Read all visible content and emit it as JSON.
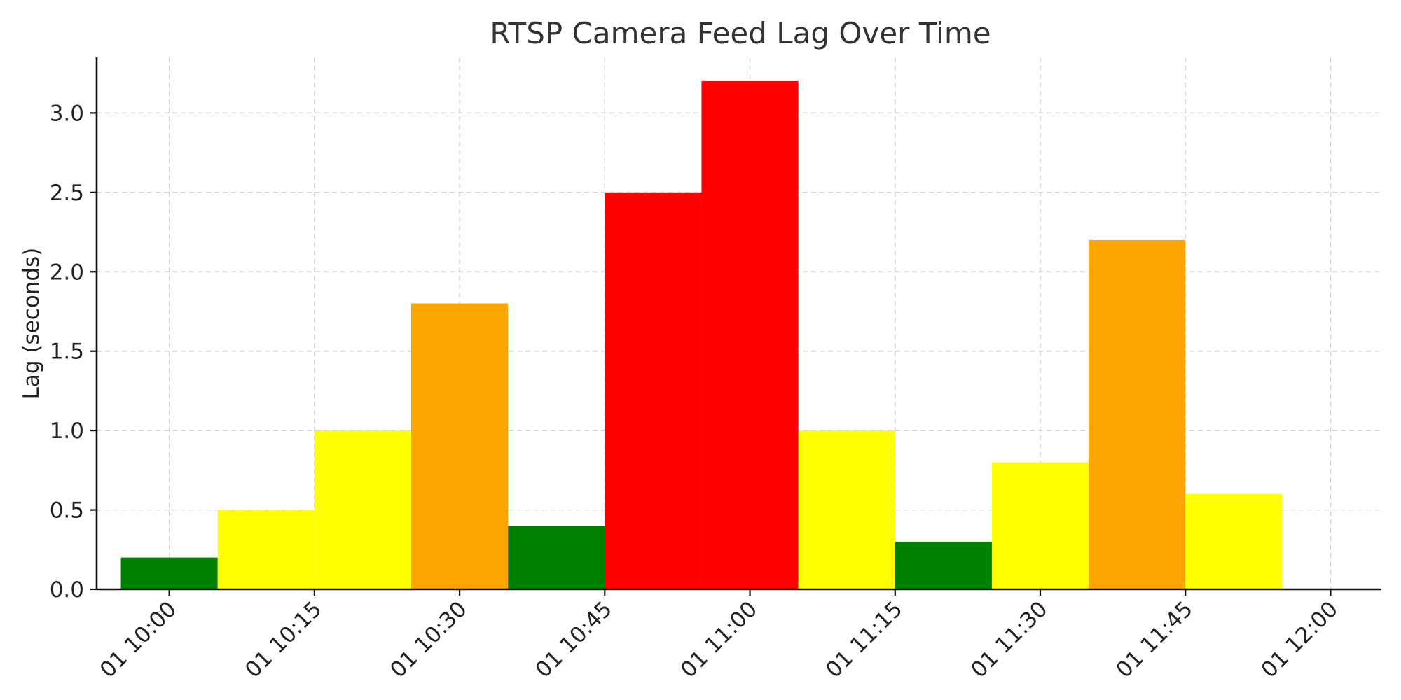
{
  "chart_data": {
    "type": "bar",
    "title": "RTSP Camera Feed Lag Over Time",
    "xlabel": "",
    "ylabel": "Lag (seconds)",
    "x_axis_type": "time",
    "x_ticks": [
      "01 10:00",
      "01 10:15",
      "01 10:30",
      "01 10:45",
      "01 11:00",
      "01 11:15",
      "01 11:30",
      "01 11:45",
      "01 12:00"
    ],
    "xlim": [
      "10:00 - 0.5*15min",
      "12:00 + 0.35*15min"
    ],
    "y_ticks": [
      "0.0",
      "0.5",
      "1.0",
      "1.5",
      "2.0",
      "2.5",
      "3.0"
    ],
    "ylim": [
      0,
      3.35
    ],
    "grid": true,
    "legend": "none",
    "bar_duration_minutes": 10,
    "bars": [
      {
        "time": "10:00",
        "value": 0.2,
        "color": "#008000"
      },
      {
        "time": "10:10",
        "value": 0.5,
        "color": "#ffff00"
      },
      {
        "time": "10:20",
        "value": 1.0,
        "color": "#ffff00"
      },
      {
        "time": "10:30",
        "value": 1.8,
        "color": "#ffa500"
      },
      {
        "time": "10:40",
        "value": 0.4,
        "color": "#008000"
      },
      {
        "time": "10:50",
        "value": 2.5,
        "color": "#ff0000"
      },
      {
        "time": "11:00",
        "value": 3.2,
        "color": "#ff0000"
      },
      {
        "time": "11:10",
        "value": 1.0,
        "color": "#ffff00"
      },
      {
        "time": "11:20",
        "value": 0.3,
        "color": "#008000"
      },
      {
        "time": "11:30",
        "value": 0.8,
        "color": "#ffff00"
      },
      {
        "time": "11:40",
        "value": 2.2,
        "color": "#ffa500"
      },
      {
        "time": "11:50",
        "value": 0.6,
        "color": "#ffff00"
      }
    ]
  }
}
